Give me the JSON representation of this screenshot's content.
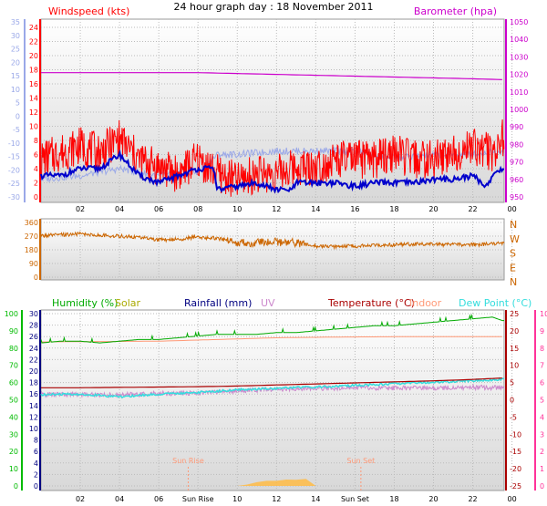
{
  "title": "24 hour graph day : 18 November 2011",
  "colors": {
    "windspeed": "#ff0000",
    "barometer": "#cc00cc",
    "gust_scale": "#9aa8e8",
    "wind_avg": "#0000cc",
    "direction": "#cc6600",
    "direction_label": "#cc6600",
    "humidity": "#00aa00",
    "solar": "#aaaa00",
    "rainfall": "#000080",
    "uv": "#cc88cc",
    "temperature": "#aa0000",
    "indoor": "#ff9977",
    "dewpoint": "#33dddd",
    "left_axis_green": "#00bb00",
    "right_axis_pink": "#ff3399",
    "sun": "#ffbb44"
  },
  "chart_data": [
    {
      "type": "line",
      "name": "wind-barometer",
      "legend": {
        "windspeed": "Windspeed (kts)",
        "barometer": "Barometer (hpa)"
      },
      "xticks": [
        "02",
        "04",
        "06",
        "08",
        "10",
        "12",
        "14",
        "16",
        "18",
        "20",
        "22",
        "00"
      ],
      "left_outer_ticks": [
        35,
        30,
        25,
        20,
        15,
        10,
        5,
        0,
        -5,
        -10,
        -15,
        -20,
        -25,
        -30
      ],
      "left_ticks": [
        24,
        22,
        20,
        18,
        16,
        14,
        12,
        10,
        8,
        6,
        4,
        2,
        0
      ],
      "ylim_windspeed": [
        0,
        24
      ],
      "right_ticks": [
        1050,
        1040,
        1030,
        1020,
        1010,
        1000,
        990,
        980,
        970,
        960,
        950
      ],
      "ylim_barometer": [
        950,
        1050
      ],
      "series": [
        {
          "key": "barometer",
          "x": [
            0,
            2,
            4,
            6,
            8,
            10,
            12,
            14,
            16,
            18,
            20,
            22,
            23.5
          ],
          "values": [
            1021,
            1021,
            1021,
            1021,
            1021,
            1020.5,
            1020,
            1019.5,
            1019,
            1018.5,
            1018,
            1017.5,
            1017
          ]
        },
        {
          "key": "gust_scale",
          "x": [
            0,
            2,
            4,
            6,
            8,
            9,
            10,
            12,
            14,
            16,
            18,
            20,
            22,
            23.5
          ],
          "values": [
            2.5,
            3,
            4,
            3,
            3.5,
            6,
            6,
            6.5,
            6.5,
            6.5,
            5.5,
            6,
            6,
            6.5
          ]
        },
        {
          "key": "windspeed",
          "x": [
            0,
            1,
            2,
            3,
            4,
            5,
            6,
            7,
            8,
            9,
            10,
            11,
            12,
            13,
            14,
            15,
            16,
            17,
            18,
            19,
            20,
            21,
            22,
            23,
            23.5
          ],
          "values": [
            5,
            6,
            7,
            6,
            8,
            5,
            4,
            3,
            5,
            3,
            2,
            3,
            3,
            4,
            4,
            5,
            5,
            5,
            6,
            5,
            5,
            6,
            7,
            6,
            8
          ]
        },
        {
          "key": "wind_avg",
          "x": [
            0,
            1,
            2,
            3,
            4,
            5,
            6,
            7,
            8,
            8.8,
            9,
            10,
            11,
            12,
            12.8,
            13,
            14,
            15,
            16,
            17,
            18,
            19,
            20,
            21,
            22,
            22.7,
            23,
            23.5
          ],
          "values": [
            3,
            3,
            4,
            4,
            6,
            3,
            2,
            3,
            4,
            4,
            1,
            1.5,
            2,
            1,
            1,
            2,
            2,
            2,
            1.5,
            2,
            2,
            2,
            2.5,
            2.5,
            3,
            1.5,
            3,
            4
          ]
        }
      ]
    },
    {
      "type": "line",
      "name": "wind-direction",
      "left_ticks": [
        360,
        270,
        180,
        90,
        0
      ],
      "ylim": [
        0,
        360
      ],
      "direction_labels": [
        "N",
        "W",
        "S",
        "E",
        "N"
      ],
      "series": [
        {
          "key": "direction",
          "x": [
            0,
            1,
            2,
            3,
            4,
            5,
            6,
            7,
            8,
            9,
            10,
            11,
            12,
            13,
            14,
            15,
            16,
            17,
            18,
            19,
            20,
            21,
            22,
            23,
            23.5
          ],
          "values": [
            272,
            278,
            285,
            275,
            270,
            262,
            245,
            250,
            265,
            255,
            228,
            225,
            232,
            226,
            205,
            202,
            205,
            208,
            212,
            218,
            215,
            214,
            215,
            218,
            222
          ]
        }
      ]
    },
    {
      "type": "line",
      "name": "humidity-temperature",
      "legend": {
        "humidity": "Humidity (%)",
        "solar": "Solar",
        "rainfall": "Rainfall (mm)",
        "uv": "UV",
        "temperature": "Temperature (°C)",
        "indoor": "Indoor",
        "dewpoint": "Dew Point (°C)"
      },
      "xticks": [
        "02",
        "04",
        "06",
        "Sun Rise",
        "10",
        "12",
        "14",
        "Sun Set",
        "18",
        "20",
        "22",
        "00"
      ],
      "left_outer_ticks": [
        100,
        90,
        80,
        70,
        60,
        50,
        40,
        30,
        20,
        10,
        0
      ],
      "left_ticks": [
        30,
        28,
        26,
        24,
        22,
        20,
        18,
        16,
        14,
        12,
        10,
        8,
        6,
        4,
        2,
        0
      ],
      "right_ticks": [
        25,
        20,
        15,
        10,
        5,
        0,
        -5,
        -10,
        -15,
        -20,
        -25
      ],
      "right_outer_ticks": [
        10,
        9,
        8,
        7,
        6,
        5,
        4,
        3,
        2,
        1,
        0
      ],
      "ylim_temperature": [
        -25,
        25
      ],
      "ylim_humidity": [
        0,
        100
      ],
      "annotations": {
        "sunrise": "Sun Rise",
        "sunset": "Sun Set"
      },
      "sunrise_hour": 7.5,
      "sunset_hour": 16.3,
      "series": [
        {
          "key": "humidity",
          "x": [
            0,
            1,
            2,
            3,
            4,
            5,
            6,
            7,
            8,
            9,
            10,
            11,
            12,
            13,
            14,
            15,
            16,
            17,
            18,
            19,
            20,
            21,
            22,
            23,
            23.5
          ],
          "values": [
            83,
            84,
            84,
            83,
            84,
            85,
            85,
            86,
            87,
            88,
            88,
            88,
            89,
            89,
            90,
            91,
            92,
            93,
            93,
            94,
            95,
            96,
            97,
            98,
            96
          ]
        },
        {
          "key": "indoor",
          "x": [
            0,
            3,
            6,
            9,
            12,
            15,
            18,
            21,
            23.5
          ],
          "values": [
            16.8,
            16.9,
            17.0,
            17.5,
            18.0,
            18.2,
            18.3,
            18.3,
            18.3
          ]
        },
        {
          "key": "temperature",
          "x": [
            0,
            2,
            4,
            6,
            8,
            10,
            12,
            14,
            16,
            18,
            20,
            22,
            23.5
          ],
          "values": [
            3.5,
            3.5,
            3.6,
            3.7,
            3.8,
            4.0,
            4.3,
            4.6,
            4.9,
            5.2,
            5.5,
            5.9,
            6.3
          ]
        },
        {
          "key": "dewpoint",
          "x": [
            0,
            1,
            2,
            3,
            4,
            5,
            6,
            7,
            8,
            9,
            10,
            11,
            12,
            13,
            14,
            15,
            16,
            17,
            18,
            19,
            20,
            21,
            22,
            23,
            23.5
          ],
          "values": [
            1.5,
            1.6,
            1.6,
            1.3,
            0.8,
            1.3,
            1.6,
            1.9,
            2.1,
            2.5,
            2.9,
            3.1,
            3.3,
            3.6,
            3.7,
            3.9,
            4.2,
            4.4,
            4.6,
            4.9,
            5.1,
            5.3,
            5.6,
            5.8,
            6.0
          ]
        },
        {
          "key": "uv",
          "x": [
            0,
            2,
            4,
            6,
            8,
            10,
            12,
            14,
            16,
            18,
            20,
            22,
            23.5
          ],
          "values": [
            1.5,
            1.6,
            1.4,
            1.8,
            2.0,
            2.6,
            3.0,
            3.3,
            3.5,
            3.4,
            3.4,
            3.6,
            3.5
          ]
        },
        {
          "key": "solar",
          "x": [
            10,
            10.5,
            11,
            11.5,
            12,
            12.5,
            13,
            13.5,
            14
          ],
          "values": [
            0,
            0.3,
            0.6,
            0.8,
            1.0,
            1.2,
            1.0,
            1.4,
            0
          ]
        }
      ]
    }
  ]
}
